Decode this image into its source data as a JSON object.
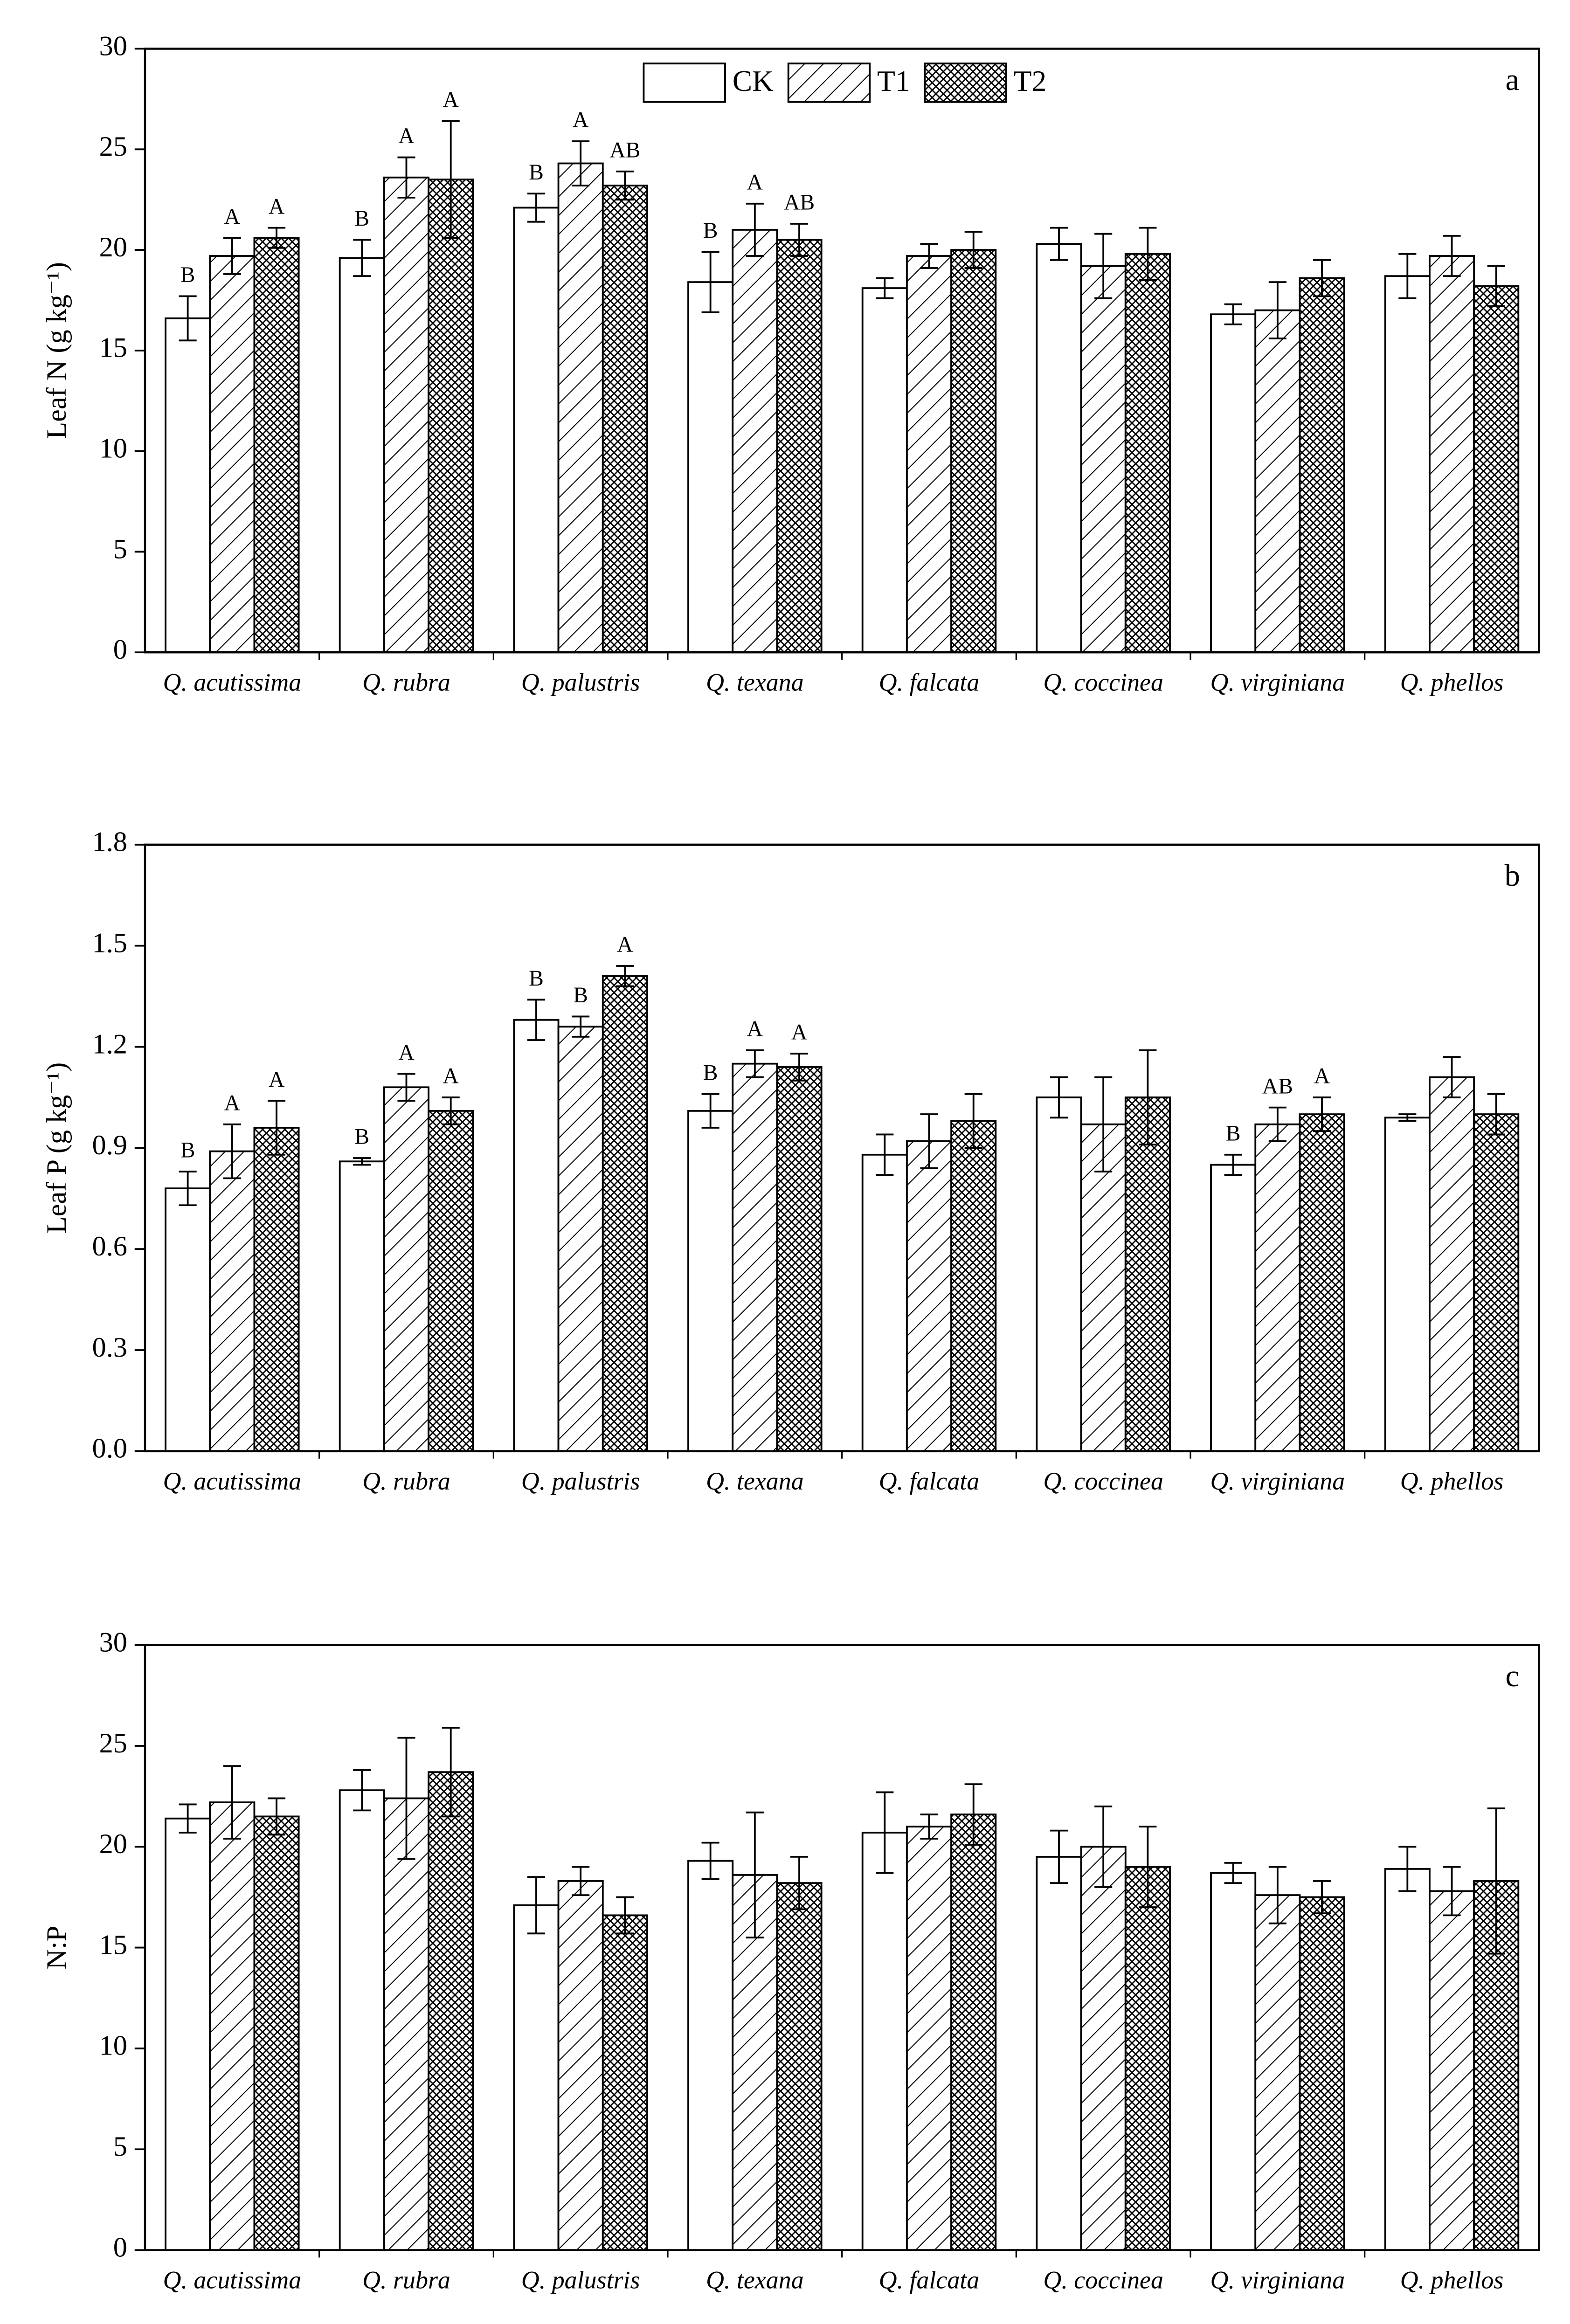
{
  "chart_data": [
    {
      "type": "bar",
      "y_label": "Leaf N (g kg⁻¹)",
      "panel_label": "a",
      "legend": "top-center",
      "categories": [
        "Q. acutissima",
        "Q. rubra",
        "Q. palustris",
        "Q. texana",
        "Q. falcata",
        "Q. coccinea",
        "Q. virginiana",
        "Q. phellos"
      ],
      "ylim": [
        0,
        30
      ],
      "yticks": [
        0,
        5,
        10,
        15,
        20,
        25,
        30
      ],
      "series": [
        {
          "name": "CK",
          "color": "#ffffff",
          "pattern": "none",
          "values": [
            16.6,
            19.6,
            22.1,
            18.4,
            18.1,
            20.3,
            16.8,
            18.7
          ],
          "errors": [
            1.1,
            0.9,
            0.7,
            1.5,
            0.5,
            0.8,
            0.5,
            1.1
          ],
          "labels": [
            "B",
            "B",
            "B",
            "B",
            null,
            null,
            null,
            null
          ]
        },
        {
          "name": "T1",
          "color": "#ffffff",
          "pattern": "hatch",
          "values": [
            19.7,
            23.6,
            24.3,
            21.0,
            19.7,
            19.2,
            17.0,
            19.7
          ],
          "errors": [
            0.9,
            1.0,
            1.1,
            1.3,
            0.6,
            1.6,
            1.4,
            1.0
          ],
          "labels": [
            "A",
            "A",
            "A",
            "A",
            null,
            null,
            null,
            null
          ]
        },
        {
          "name": "T2",
          "color": "#ffffff",
          "pattern": "crosshatch",
          "values": [
            20.6,
            23.5,
            23.2,
            20.5,
            20.0,
            19.8,
            18.6,
            18.2
          ],
          "errors": [
            0.5,
            2.9,
            0.7,
            0.8,
            0.9,
            1.3,
            0.9,
            1.0
          ],
          "labels": [
            "A",
            "A",
            "AB",
            "AB",
            null,
            null,
            null,
            null
          ]
        }
      ]
    },
    {
      "type": "bar",
      "y_label": "Leaf P (g kg⁻¹)",
      "panel_label": "b",
      "legend": false,
      "categories": [
        "Q. acutissima",
        "Q. rubra",
        "Q. palustris",
        "Q. texana",
        "Q. falcata",
        "Q. coccinea",
        "Q. virginiana",
        "Q. phellos"
      ],
      "ylim": [
        0,
        1.8
      ],
      "yticks": [
        {
          "value": 0,
          "label": "0.0"
        },
        0.3,
        0.6,
        0.9,
        1.2,
        1.5,
        1.8
      ],
      "series": [
        {
          "color": "#ffffff",
          "pattern": "none",
          "values": [
            0.78,
            0.86,
            1.28,
            1.01,
            0.88,
            1.05,
            0.85,
            0.99
          ],
          "errors": [
            0.05,
            0.01,
            0.06,
            0.05,
            0.06,
            0.06,
            0.03,
            0.01
          ],
          "labels": [
            "B",
            "B",
            "B",
            "B",
            null,
            null,
            "B",
            null
          ]
        },
        {
          "color": "#ffffff",
          "pattern": "hatch",
          "values": [
            0.89,
            1.08,
            1.26,
            1.15,
            0.92,
            0.97,
            0.97,
            1.11
          ],
          "errors": [
            0.08,
            0.04,
            0.03,
            0.04,
            0.08,
            0.14,
            0.05,
            0.06
          ],
          "labels": [
            "A",
            "A",
            "B",
            "A",
            null,
            null,
            "AB",
            null
          ]
        },
        {
          "color": "#ffffff",
          "pattern": "crosshatch",
          "values": [
            0.96,
            1.01,
            1.41,
            1.14,
            0.98,
            1.05,
            1.0,
            1.0
          ],
          "errors": [
            0.08,
            0.04,
            0.03,
            0.04,
            0.08,
            0.14,
            0.05,
            0.06
          ],
          "labels": [
            "A",
            "A",
            "A",
            "A",
            null,
            null,
            "A",
            null
          ]
        }
      ]
    },
    {
      "type": "bar",
      "y_label": "N:P",
      "panel_label": "c",
      "legend": false,
      "categories": [
        "Q. acutissima",
        "Q. rubra",
        "Q. palustris",
        "Q. texana",
        "Q. falcata",
        "Q. coccinea",
        "Q. virginiana",
        "Q. phellos"
      ],
      "ylim": [
        0,
        30
      ],
      "yticks": [
        0,
        5,
        10,
        15,
        20,
        25,
        30
      ],
      "series": [
        {
          "color": "#ffffff",
          "pattern": "none",
          "values": [
            21.4,
            22.8,
            17.1,
            19.3,
            20.7,
            19.5,
            18.7,
            18.9
          ],
          "errors": [
            0.7,
            1.0,
            1.4,
            0.9,
            2.0,
            1.3,
            0.5,
            1.1
          ]
        },
        {
          "color": "#ffffff",
          "pattern": "hatch",
          "values": [
            22.2,
            22.4,
            18.3,
            18.6,
            21.0,
            20.0,
            17.6,
            17.8
          ],
          "errors": [
            1.8,
            3.0,
            0.7,
            3.1,
            0.6,
            2.0,
            1.4,
            1.2
          ]
        },
        {
          "color": "#ffffff",
          "pattern": "crosshatch",
          "values": [
            21.5,
            23.7,
            16.6,
            18.2,
            21.6,
            19.0,
            17.5,
            18.3
          ],
          "errors": [
            0.9,
            2.2,
            0.9,
            1.3,
            1.5,
            2.0,
            0.8,
            3.6
          ]
        }
      ]
    }
  ]
}
